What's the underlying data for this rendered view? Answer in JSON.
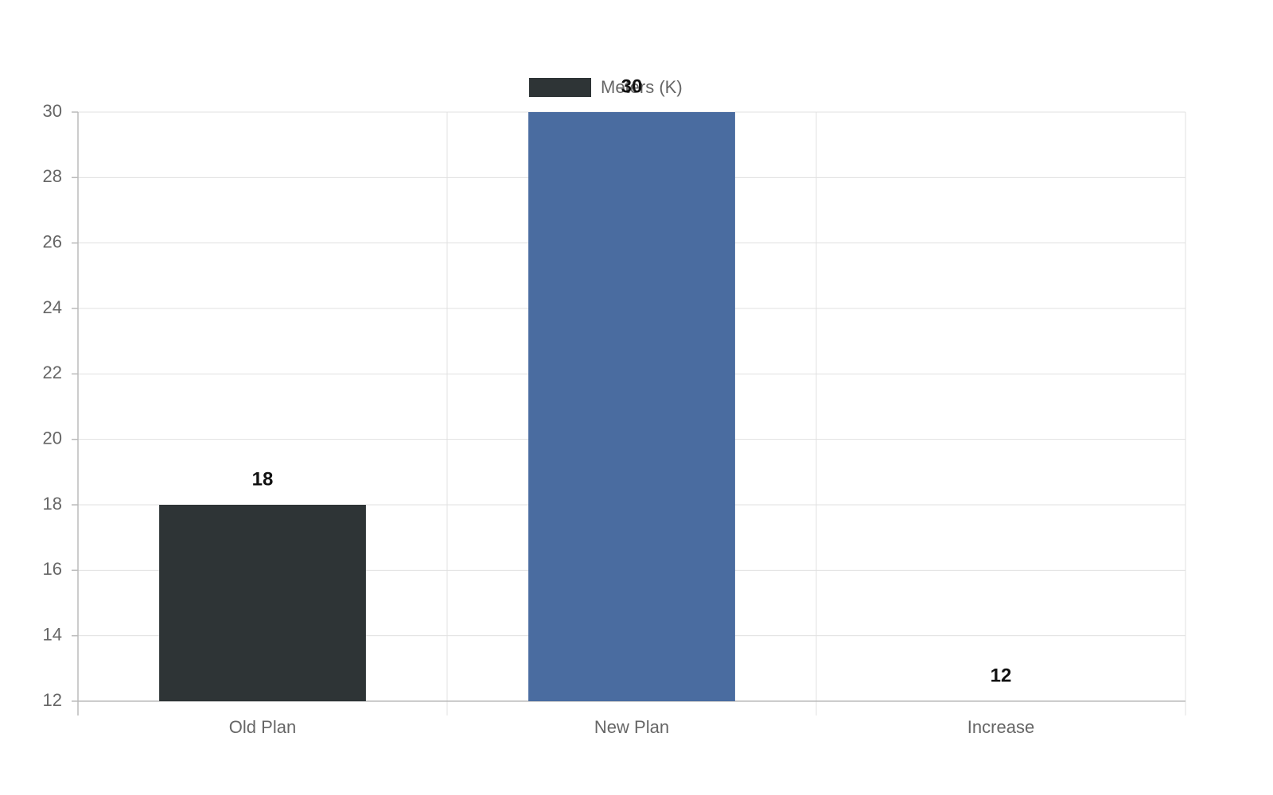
{
  "chart_data": {
    "type": "bar",
    "categories": [
      "Old Plan",
      "New Plan",
      "Increase"
    ],
    "series": [
      {
        "name": "Meters (K)",
        "values": [
          18,
          30,
          12
        ],
        "colors": [
          "#2e3436",
          "#4a6ca0",
          "#4a6ca0"
        ]
      }
    ],
    "ylim": [
      12,
      30
    ],
    "yticks": [
      12,
      14,
      16,
      18,
      20,
      22,
      24,
      26,
      28,
      30
    ],
    "grid": true,
    "legend": "top"
  }
}
